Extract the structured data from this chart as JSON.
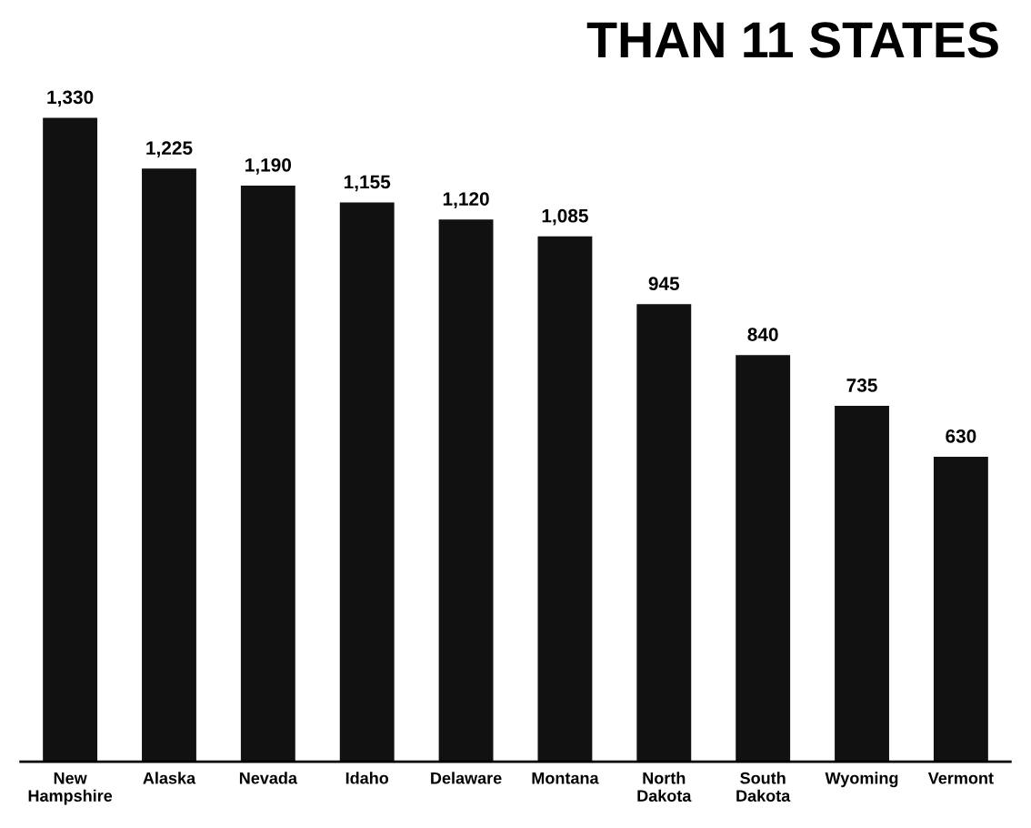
{
  "chart_data": {
    "type": "bar",
    "title": "THAN 11 STATES",
    "categories": [
      "New\nHampshire",
      "Alaska",
      "Nevada",
      "Idaho",
      "Delaware",
      "Montana",
      "North\nDakota",
      "South\nDakota",
      "Wyoming",
      "Vermont"
    ],
    "values": [
      1330,
      1225,
      1190,
      1155,
      1120,
      1085,
      945,
      840,
      735,
      630
    ],
    "value_labels": [
      "1,330",
      "1,225",
      "1,190",
      "1,155",
      "1,120",
      "1,085",
      "945",
      "840",
      "735",
      "630"
    ],
    "color": "#111111",
    "grid": false,
    "legend": false,
    "tick_labels": "x"
  }
}
